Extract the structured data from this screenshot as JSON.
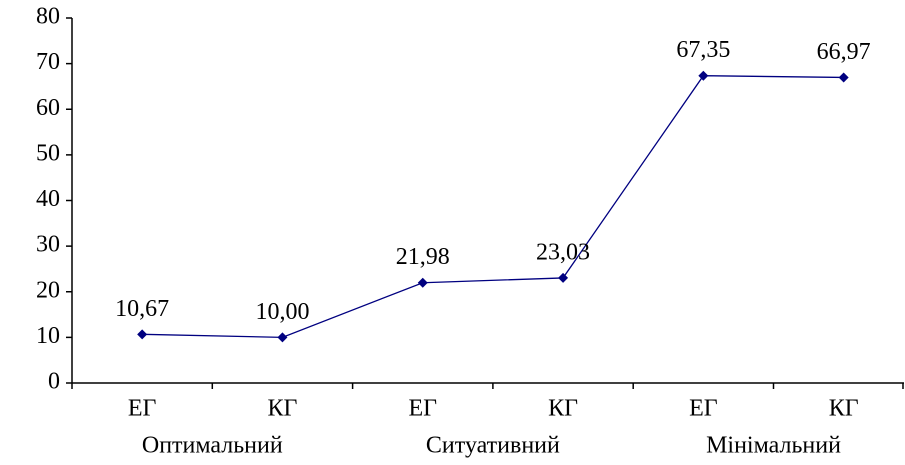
{
  "chart_data": {
    "type": "line",
    "categories": [
      "ЕГ",
      "КГ",
      "ЕГ",
      "КГ",
      "ЕГ",
      "КГ"
    ],
    "groups": [
      "Оптимальний",
      "Ситуативний",
      "Мінімальний"
    ],
    "values": [
      10.67,
      10.0,
      21.98,
      23.03,
      67.35,
      66.97
    ],
    "value_labels": [
      "10,67",
      "10,00",
      "21,98",
      "23,03",
      "67,35",
      "66,97"
    ],
    "color": "#000080",
    "ylim": [
      0,
      80
    ],
    "yticks": [
      0,
      10,
      20,
      30,
      40,
      50,
      60,
      70,
      80
    ],
    "grid": false
  }
}
